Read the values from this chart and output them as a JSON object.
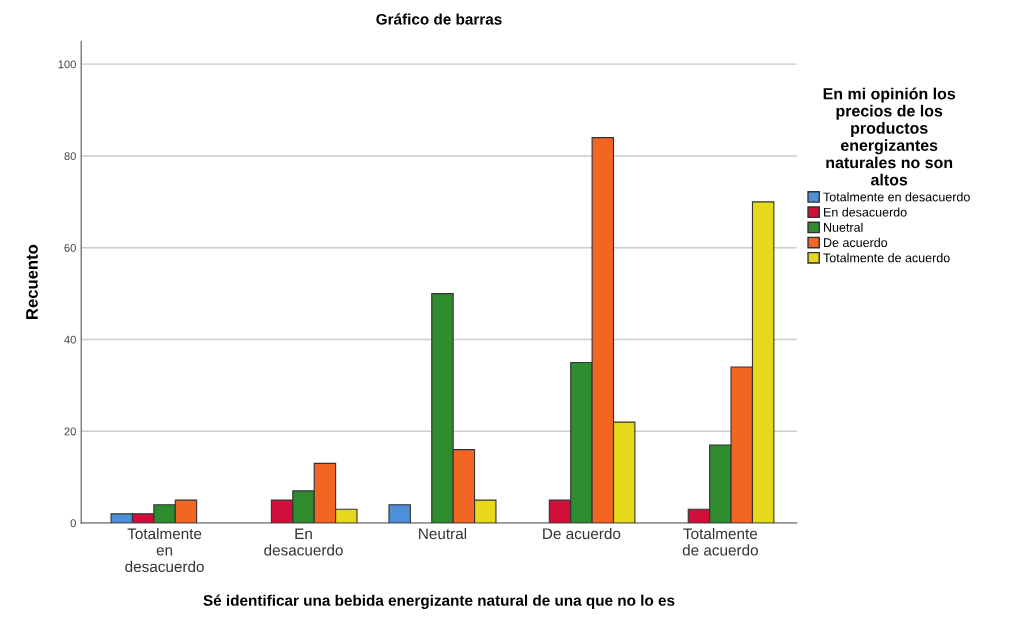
{
  "chart_data": {
    "type": "bar",
    "title": "Gráfico de barras",
    "xlabel": "Sé identificar una bebida energizante natural de una que no lo es",
    "ylabel": "Recuento",
    "legend_title": "En mi opinión los\nprecios de los\nproductos\nenergizantes\nnaturales no son\naltos",
    "categories": [
      "Totalmente\nen\ndesacuerdo",
      "En\ndesacuerdo",
      "Neutral",
      "De acuerdo",
      "Totalmente\nde acuerdo"
    ],
    "series": [
      {
        "name": "Totalmente en desacuerdo",
        "color": "#4f8fd9",
        "values": [
          2,
          null,
          4,
          null,
          null
        ]
      },
      {
        "name": "En desacuerdo",
        "color": "#d0103a",
        "values": [
          2,
          5,
          null,
          5,
          3
        ]
      },
      {
        "name": "Nuetral",
        "color": "#2e8b2e",
        "values": [
          4,
          7,
          50,
          35,
          17
        ]
      },
      {
        "name": "De acuerdo",
        "color": "#f26522",
        "values": [
          5,
          13,
          16,
          84,
          34
        ]
      },
      {
        "name": "Totalmente de acuerdo",
        "color": "#e6d81a",
        "values": [
          null,
          3,
          5,
          22,
          70
        ]
      }
    ],
    "ylim": [
      0,
      105
    ],
    "yticks": [
      0,
      20,
      40,
      60,
      80,
      100
    ],
    "grid": "y",
    "legend": "right"
  }
}
